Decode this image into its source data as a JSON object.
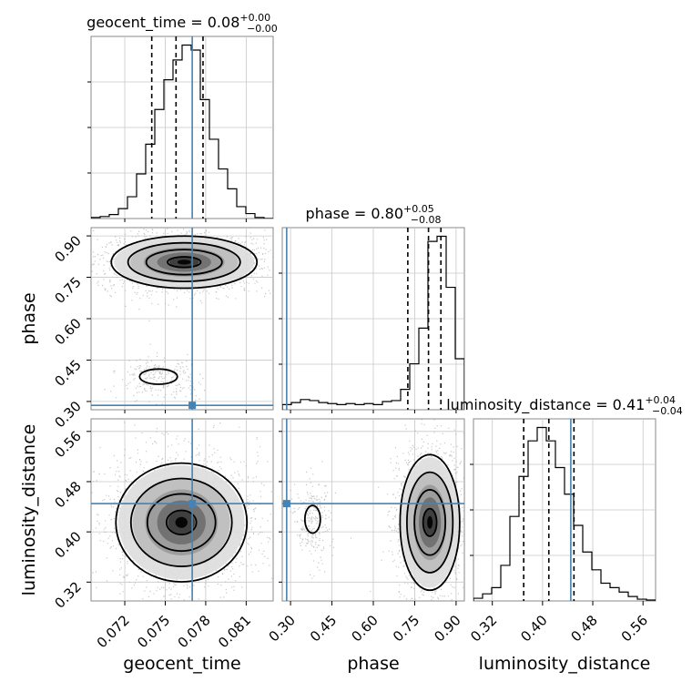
{
  "chart_data": {
    "type": "corner",
    "parameters": [
      "geocent_time",
      "phase",
      "luminosity_distance"
    ],
    "truths": {
      "geocent_time": 0.077,
      "phase": 0.286,
      "luminosity_distance": 0.445
    },
    "titles": [
      {
        "param": "geocent_time",
        "text": "geocent_time = 0.08",
        "sup": "+0.00",
        "sub": "−0.00"
      },
      {
        "param": "phase",
        "text": "phase = 0.80",
        "sup": "+0.05",
        "sub": "−0.08"
      },
      {
        "param": "luminosity_distance",
        "text": "luminosity_distance = 0.41",
        "sup": "+0.04",
        "sub": "−0.04"
      }
    ],
    "axes": {
      "geocent_time": {
        "range": [
          0.0695,
          0.083
        ],
        "ticks": [
          0.072,
          0.075,
          0.078,
          0.081
        ],
        "tick_labels": [
          "0.072",
          "0.075",
          "0.078",
          "0.081"
        ],
        "label": "geocent_time"
      },
      "phase": {
        "range": [
          0.27,
          0.93
        ],
        "ticks": [
          0.3,
          0.45,
          0.6,
          0.75,
          0.9
        ],
        "tick_labels": [
          "0.30",
          "0.45",
          "0.60",
          "0.75",
          "0.90"
        ],
        "label": "phase"
      },
      "luminosity_distance": {
        "range": [
          0.29,
          0.58
        ],
        "ticks": [
          0.32,
          0.4,
          0.48,
          0.56
        ],
        "tick_labels": [
          "0.32",
          "0.40",
          "0.48",
          "0.56"
        ],
        "label": "luminosity_distance"
      }
    },
    "histograms": {
      "geocent_time": {
        "range": [
          0.0695,
          0.083
        ],
        "counts": [
          1,
          2,
          4,
          10,
          22,
          45,
          75,
          110,
          140,
          160,
          175,
          170,
          120,
          80,
          50,
          30,
          12,
          5,
          1,
          0
        ],
        "quantiles": [
          0.074,
          0.0758,
          0.0778
        ]
      },
      "phase": {
        "range": [
          0.27,
          0.93
        ],
        "counts": [
          5,
          7,
          10,
          9,
          7,
          6,
          5,
          6,
          5,
          6,
          5,
          8,
          9,
          20,
          45,
          80,
          165,
          170,
          120,
          50
        ],
        "quantiles": [
          0.725,
          0.8,
          0.845
        ]
      },
      "luminosity_distance": {
        "range": [
          0.29,
          0.58
        ],
        "counts": [
          3,
          8,
          15,
          40,
          95,
          140,
          180,
          195,
          180,
          150,
          120,
          85,
          55,
          35,
          20,
          15,
          10,
          5,
          2,
          1
        ],
        "quantiles": [
          0.37,
          0.41,
          0.45
        ]
      }
    },
    "scatter_panels": [
      {
        "x": "geocent_time",
        "y": "phase",
        "modes": [
          {
            "cx": 0.0764,
            "cy": 0.805,
            "sx": 0.002,
            "sy": 0.035,
            "w": 0.88
          },
          {
            "cx": 0.0745,
            "cy": 0.39,
            "sx": 0.001,
            "sy": 0.025,
            "w": 0.12
          }
        ]
      },
      {
        "x": "geocent_time",
        "y": "luminosity_distance",
        "modes": [
          {
            "cx": 0.0762,
            "cy": 0.415,
            "sx": 0.0018,
            "sy": 0.035,
            "w": 1.0
          }
        ]
      },
      {
        "x": "phase",
        "y": "luminosity_distance",
        "modes": [
          {
            "cx": 0.805,
            "cy": 0.415,
            "sx": 0.04,
            "sy": 0.04,
            "w": 0.85
          },
          {
            "cx": 0.38,
            "cy": 0.42,
            "sx": 0.02,
            "sy": 0.02,
            "w": 0.15
          }
        ]
      }
    ],
    "grid": true,
    "legend": "none"
  }
}
